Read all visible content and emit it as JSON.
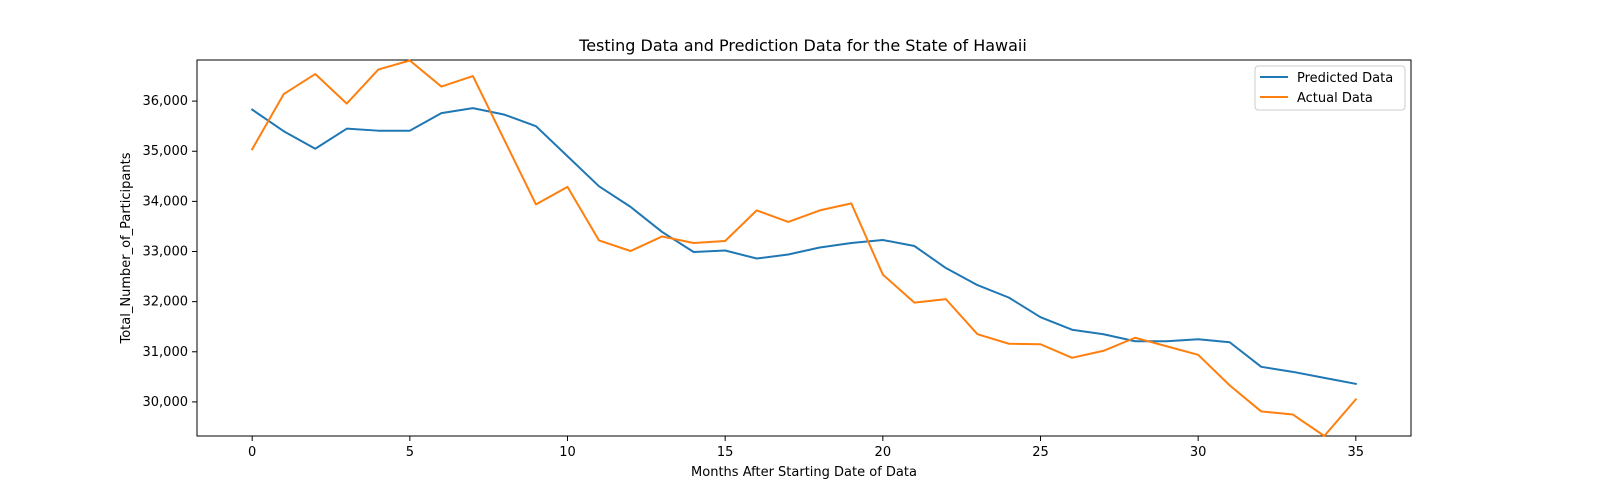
{
  "chart_data": {
    "type": "line",
    "title": "Testing Data and Prediction Data for the State of Hawaii",
    "xlabel": "Months After Starting Date of Data",
    "ylabel": "Total_Number_of_Participants",
    "xlim": [
      -1.75,
      36.75
    ],
    "ylim": [
      29320,
      36820
    ],
    "xticks": [
      0,
      5,
      10,
      15,
      20,
      25,
      30,
      35
    ],
    "xtick_labels": [
      "0",
      "5",
      "10",
      "15",
      "20",
      "25",
      "30",
      "35"
    ],
    "yticks": [
      30000,
      31000,
      32000,
      33000,
      34000,
      35000,
      36000
    ],
    "ytick_labels": [
      "30,000",
      "31,000",
      "32,000",
      "33,000",
      "34,000",
      "35,000",
      "36,000"
    ],
    "grid": false,
    "legend_position": "top-right",
    "x": [
      0,
      1,
      2,
      3,
      4,
      5,
      6,
      7,
      8,
      9,
      10,
      11,
      12,
      13,
      14,
      15,
      16,
      17,
      18,
      19,
      20,
      21,
      22,
      23,
      24,
      25,
      26,
      27,
      28,
      29,
      30,
      31,
      32,
      33,
      34,
      35
    ],
    "series": [
      {
        "name": "Predicted Data",
        "color": "#1f77b4",
        "values": [
          35830,
          35400,
          35050,
          35450,
          35410,
          35410,
          35760,
          35860,
          35730,
          35500,
          34900,
          34300,
          33890,
          33390,
          32990,
          33020,
          32860,
          32940,
          33080,
          33170,
          33230,
          33110,
          32670,
          32330,
          32080,
          31690,
          31440,
          31350,
          31210,
          31210,
          31250,
          31190,
          30700,
          30600,
          30480,
          30360
        ]
      },
      {
        "name": "Actual Data",
        "color": "#ff7f0e",
        "values": [
          35040,
          36140,
          36540,
          35950,
          36630,
          36810,
          36290,
          36500,
          35220,
          33940,
          34290,
          33220,
          33010,
          33300,
          33170,
          33210,
          33820,
          33590,
          33820,
          33960,
          32540,
          31980,
          32050,
          31350,
          31160,
          31150,
          30880,
          31020,
          31280,
          31110,
          30940,
          30330,
          29810,
          29750,
          29320,
          30050
        ]
      }
    ]
  }
}
